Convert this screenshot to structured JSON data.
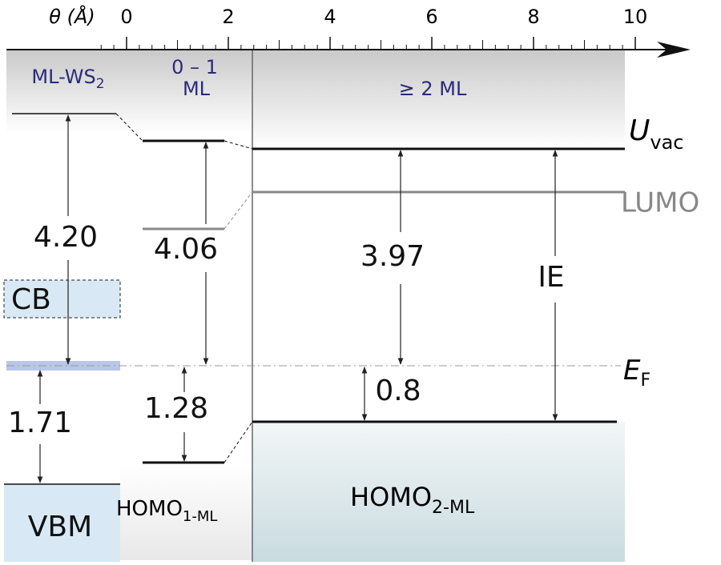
{
  "axis": {
    "label": "θ (Å)",
    "ticks": [
      0,
      2,
      4,
      6,
      8,
      10
    ]
  },
  "regions": {
    "ml_ws2": {
      "text": "ML-WS",
      "sub": "2"
    },
    "sub_ml": {
      "line1": "0 – 1",
      "line2": "ML"
    },
    "multi_ml": "≥ 2 ML"
  },
  "levels": {
    "u_vac": {
      "text": "U",
      "sub": "vac"
    },
    "lumo": "LUMO",
    "e_f": {
      "text": "E",
      "sub": "F"
    },
    "cb": "CB",
    "vbm": "VBM",
    "homo_1ml": {
      "text": "HOMO",
      "sub": "1-ML"
    },
    "homo_2ml": {
      "text": "HOMO",
      "sub": "2-ML"
    }
  },
  "gaps": [
    "4.20",
    "1.71",
    "4.06",
    "1.28",
    "3.97",
    "0.8"
  ],
  "ie": "IE"
}
